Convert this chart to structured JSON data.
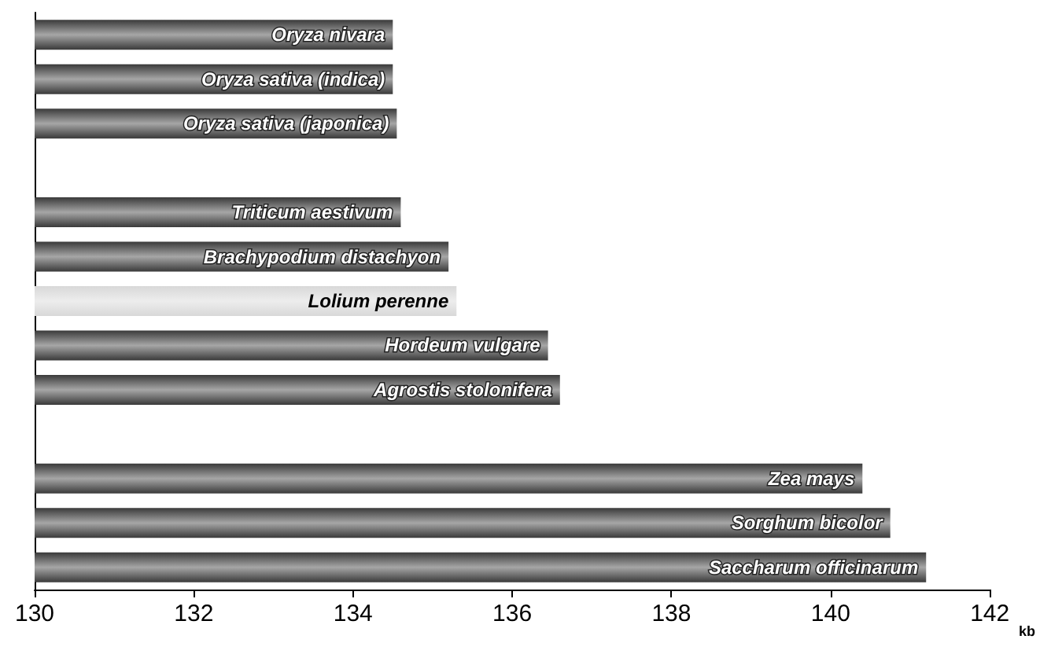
{
  "chart_data": {
    "type": "bar",
    "orientation": "horizontal",
    "xlabel": "kb",
    "categories": [
      "Oryza nivara",
      "Oryza sativa (indica)",
      "Oryza sativa (japonica)",
      null,
      "Triticum aestivum",
      "Brachypodium distachyon",
      "Lolium perenne",
      "Hordeum vulgare",
      "Agrostis stolonifera",
      null,
      "Zea mays",
      "Sorghum bicolor",
      "Saccharum officinarum"
    ],
    "values": [
      134.5,
      134.5,
      134.55,
      null,
      134.6,
      135.2,
      135.3,
      136.45,
      136.6,
      null,
      140.4,
      140.75,
      141.2
    ],
    "colors": [
      "#3a3a3a",
      "#3a3a3a",
      "#3a3a3a",
      null,
      "#3a3a3a",
      "#3a3a3a",
      "#d8d8d8",
      "#3a3a3a",
      "#3a3a3a",
      null,
      "#3a3a3a",
      "#3a3a3a",
      "#3a3a3a"
    ],
    "xlim": [
      130,
      142
    ],
    "xticks": [
      130,
      132,
      134,
      136,
      138,
      140,
      142
    ],
    "tick_labels": "x",
    "grid": false
  }
}
